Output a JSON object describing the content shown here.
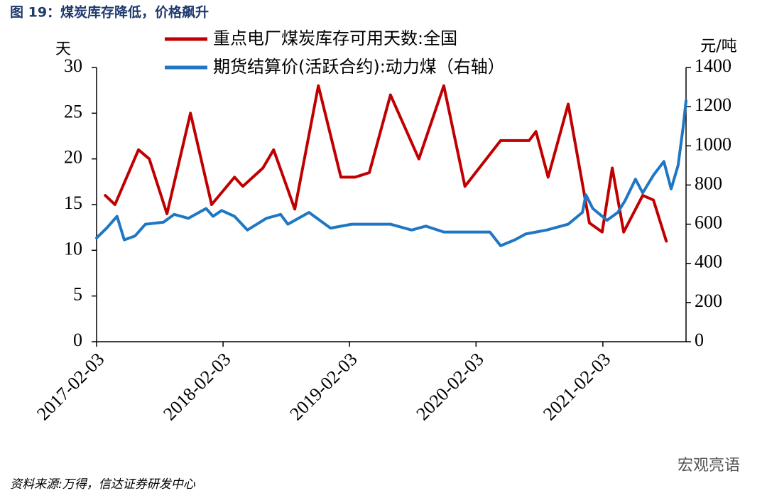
{
  "chart_data": {
    "type": "line",
    "title": "图 19：煤炭库存降低，价格飙升",
    "ylabel": "天",
    "y2label": "元/吨",
    "source": "资料来源:万得，信达证券研发中心",
    "watermark": "宏观亮语",
    "xlim": [
      "2017-02-03",
      "2021-10-01"
    ],
    "xticks": [
      "2017-02-03",
      "2018-02-03",
      "2019-02-03",
      "2020-02-03",
      "2021-02-03"
    ],
    "ylim": [
      0,
      30
    ],
    "yticks": [
      0,
      5,
      10,
      15,
      20,
      25,
      30
    ],
    "y2lim": [
      0,
      1400
    ],
    "y2ticks": [
      0,
      200,
      400,
      600,
      800,
      1000,
      1200,
      1400
    ],
    "legend": "top",
    "series": [
      {
        "name": "重点电厂煤炭库存可用天数:全国",
        "color": "#c00000",
        "x": [
          "2017-02-28",
          "2017-03-28",
          "2017-06-04",
          "2017-07-05",
          "2017-08-25",
          "2017-11-01",
          "2018-01-01",
          "2018-03-08",
          "2018-04-01",
          "2018-05-29",
          "2018-06-29",
          "2018-08-29",
          "2018-11-05",
          "2019-01-09",
          "2019-02-19",
          "2019-04-01",
          "2019-06-01",
          "2019-08-22",
          "2019-11-02",
          "2020-01-02",
          "2020-04-14",
          "2020-07-05",
          "2020-07-25",
          "2020-08-29",
          "2020-10-26",
          "2020-12-26",
          "2021-02-01",
          "2021-03-02",
          "2021-04-04",
          "2021-05-29",
          "2021-06-29",
          "2021-08-05"
        ],
        "values": [
          16,
          15,
          21,
          20,
          14,
          25,
          15,
          18,
          17,
          19,
          21,
          14.5,
          28,
          18,
          18,
          18.5,
          27,
          20,
          28,
          17,
          22,
          22,
          23,
          18,
          26,
          13,
          12,
          19,
          12,
          16,
          15.5,
          11
        ]
      },
      {
        "name": "期货结算价(活跃合约):动力煤（右轴）",
        "color": "#1f77c4",
        "axis": "y2",
        "x": [
          "2017-02-03",
          "2017-03-04",
          "2017-04-03",
          "2017-04-24",
          "2017-05-25",
          "2017-06-24",
          "2017-08-15",
          "2017-09-15",
          "2017-10-26",
          "2017-12-16",
          "2018-01-05",
          "2018-01-30",
          "2018-03-08",
          "2018-04-14",
          "2018-06-08",
          "2018-07-19",
          "2018-08-09",
          "2018-10-09",
          "2018-12-10",
          "2019-02-09",
          "2019-04-01",
          "2019-06-01",
          "2019-08-01",
          "2019-09-11",
          "2019-11-02",
          "2020-01-13",
          "2020-03-14",
          "2020-04-14",
          "2020-05-25",
          "2020-06-25",
          "2020-08-25",
          "2020-10-26",
          "2020-12-06",
          "2020-12-16",
          "2021-01-05",
          "2021-02-15",
          "2021-03-18",
          "2021-04-08",
          "2021-05-08",
          "2021-05-29",
          "2021-06-29",
          "2021-07-29",
          "2021-08-19",
          "2021-09-08",
          "2021-09-23",
          "2021-10-01"
        ],
        "values": [
          530,
          580,
          640,
          520,
          540,
          600,
          610,
          650,
          630,
          680,
          640,
          670,
          640,
          570,
          630,
          650,
          600,
          660,
          580,
          600,
          600,
          600,
          570,
          590,
          560,
          560,
          560,
          490,
          520,
          550,
          570,
          600,
          660,
          750,
          680,
          620,
          660,
          720,
          830,
          760,
          850,
          920,
          780,
          900,
          1100,
          1230
        ]
      }
    ]
  }
}
